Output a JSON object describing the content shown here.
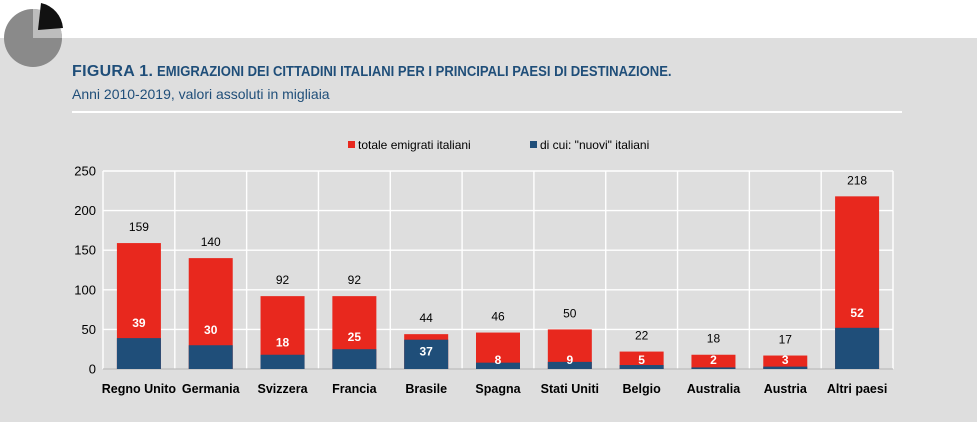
{
  "header": {
    "figure_label": "FIGURA 1.",
    "title": "EMIGRAZIONI DEI CITTADINI ITALIANI PER I PRINCIPALI PAESI DI DESTINAZIONE.",
    "subtitle": "Anni 2010-2019, valori assoluti in migliaia"
  },
  "colors": {
    "total": "#e8281e",
    "new": "#1f4e79",
    "panel": "#dedede",
    "accent": "#1f4e79"
  },
  "chart_data": {
    "type": "bar",
    "title": "",
    "xlabel": "",
    "ylabel": "",
    "ylim": [
      0,
      250
    ],
    "yticks": [
      0,
      50,
      100,
      150,
      200,
      250
    ],
    "grid": true,
    "legend": "top-center",
    "categories": [
      "Regno Unito",
      "Germania",
      "Svizzera",
      "Francia",
      "Brasile",
      "Spagna",
      "Stati Uniti",
      "Belgio",
      "Australia",
      "Austria",
      "Altri paesi"
    ],
    "series": [
      {
        "name": "totale emigrati italiani",
        "values": [
          159,
          140,
          92,
          92,
          44,
          46,
          50,
          22,
          18,
          17,
          218
        ]
      },
      {
        "name": "di cui: \"nuovi\" italiani",
        "values": [
          39,
          30,
          18,
          25,
          37,
          8,
          9,
          5,
          2,
          3,
          52
        ]
      }
    ]
  }
}
